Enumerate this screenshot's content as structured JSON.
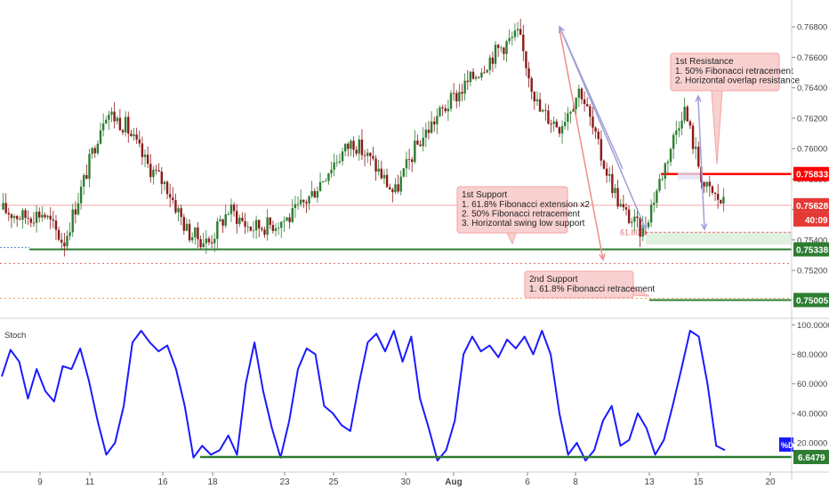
{
  "chart_data": [
    {
      "type": "candlestick",
      "panel": "price",
      "y_axis": {
        "min": 0.7492,
        "max": 0.7693,
        "ticks": [
          0.752,
          0.754,
          0.756,
          0.758,
          0.76,
          0.762,
          0.764,
          0.766,
          0.768
        ],
        "tick_labels": [
          "0.75200",
          "0.75400",
          "0.75600",
          "0.75800",
          "0.76000",
          "0.76200",
          "0.76400",
          "0.76600",
          "0.76800"
        ]
      },
      "x_axis": {
        "tick_labels": [
          "9",
          "11",
          "16",
          "18",
          "23",
          "25",
          "30",
          "Aug",
          "6",
          "8",
          "13",
          "15",
          "20"
        ]
      },
      "price_path": [
        {
          "d": "Jul 9",
          "v": 0.756
        },
        {
          "d": "Jul 10",
          "v": 0.7555
        },
        {
          "d": "Jul 11",
          "v": 0.7558
        },
        {
          "d": "Jul 12",
          "v": 0.7538
        },
        {
          "d": "Jul 13",
          "v": 0.758
        },
        {
          "d": "Jul 14",
          "v": 0.7625
        },
        {
          "d": "Jul 16",
          "v": 0.7615
        },
        {
          "d": "Jul 17",
          "v": 0.759
        },
        {
          "d": "Jul 18",
          "v": 0.7575
        },
        {
          "d": "Jul 19",
          "v": 0.7545
        },
        {
          "d": "Jul 20",
          "v": 0.7538
        },
        {
          "d": "Jul 21",
          "v": 0.756
        },
        {
          "d": "Jul 23",
          "v": 0.7548
        },
        {
          "d": "Jul 24",
          "v": 0.755
        },
        {
          "d": "Jul 25",
          "v": 0.7555
        },
        {
          "d": "Jul 26",
          "v": 0.757
        },
        {
          "d": "Jul 27",
          "v": 0.759
        },
        {
          "d": "Jul 28",
          "v": 0.7605
        },
        {
          "d": "Jul 30",
          "v": 0.759
        },
        {
          "d": "Jul 31",
          "v": 0.757
        },
        {
          "d": "Aug 1",
          "v": 0.76
        },
        {
          "d": "Aug 2",
          "v": 0.762
        },
        {
          "d": "Aug 3",
          "v": 0.7635
        },
        {
          "d": "Aug 4",
          "v": 0.765
        },
        {
          "d": "Aug 6",
          "v": 0.7665
        },
        {
          "d": "Aug 7",
          "v": 0.7675
        },
        {
          "d": "Aug 8",
          "v": 0.7625
        },
        {
          "d": "Aug 9",
          "v": 0.7615
        },
        {
          "d": "Aug 10",
          "v": 0.764
        },
        {
          "d": "Aug 11",
          "v": 0.7595
        },
        {
          "d": "Aug 12",
          "v": 0.756
        },
        {
          "d": "Aug 13",
          "v": 0.7545
        },
        {
          "d": "Aug 14",
          "v": 0.7585
        },
        {
          "d": "Aug 15",
          "v": 0.7628
        },
        {
          "d": "Aug 16",
          "v": 0.7575
        },
        {
          "d": "Aug 17",
          "v": 0.7563
        }
      ],
      "levels": [
        {
          "label": "0.75833",
          "value": 0.75833,
          "color": "#ff0000"
        },
        {
          "label": "0.75628",
          "value": 0.75628,
          "color": "#f08080"
        },
        {
          "label": "0.75338",
          "value": 0.75338,
          "color": "#2e7d32"
        },
        {
          "label": "0.75005",
          "value": 0.75005,
          "color": "#2e7d32"
        }
      ],
      "countdown": "40:09",
      "fib_label": "61.80%",
      "annotations": [
        {
          "title": "1st Resistance",
          "lines": [
            "1. 50% Fibonacci retracement",
            "2. Horizontal overlap resistance"
          ]
        },
        {
          "title": "1st Support",
          "lines": [
            "1. 61.8% Fibonacci extension x2",
            "2. 50% Fibonacci retracement",
            "3. Horizontal swing low support"
          ]
        },
        {
          "title": "2nd Support",
          "lines": [
            "1. 61.8% Fibonacci retracement"
          ]
        }
      ]
    },
    {
      "type": "line",
      "panel": "indicator",
      "title": "Stoch",
      "y_axis": {
        "min": 2.0,
        "max": 102.0,
        "tick_labels": [
          "20.0000",
          "40.0000",
          "60.0000",
          "80.0000",
          "100.0000"
        ],
        "ticks": [
          20,
          40,
          60,
          80,
          100
        ]
      },
      "series": [
        {
          "name": "%D",
          "color": "#1a1aff",
          "values": [
            65,
            83,
            75,
            50,
            70,
            55,
            48,
            72,
            70,
            84,
            62,
            35,
            12,
            20,
            45,
            88,
            96,
            88,
            82,
            86,
            70,
            45,
            10,
            18,
            12,
            15,
            25,
            12,
            60,
            88,
            55,
            30,
            10,
            35,
            70,
            84,
            80,
            45,
            40,
            32,
            28,
            60,
            88,
            94,
            82,
            96,
            75,
            92,
            50,
            30,
            8,
            15,
            35,
            80,
            92,
            82,
            86,
            78,
            90,
            84,
            92,
            80,
            96,
            80,
            40,
            12,
            20,
            8,
            15,
            35,
            45,
            18,
            22,
            40,
            30,
            12,
            22,
            45,
            70,
            96,
            92,
            60,
            18,
            15
          ]
        }
      ],
      "current": "6.6479",
      "legend": "%D"
    }
  ]
}
